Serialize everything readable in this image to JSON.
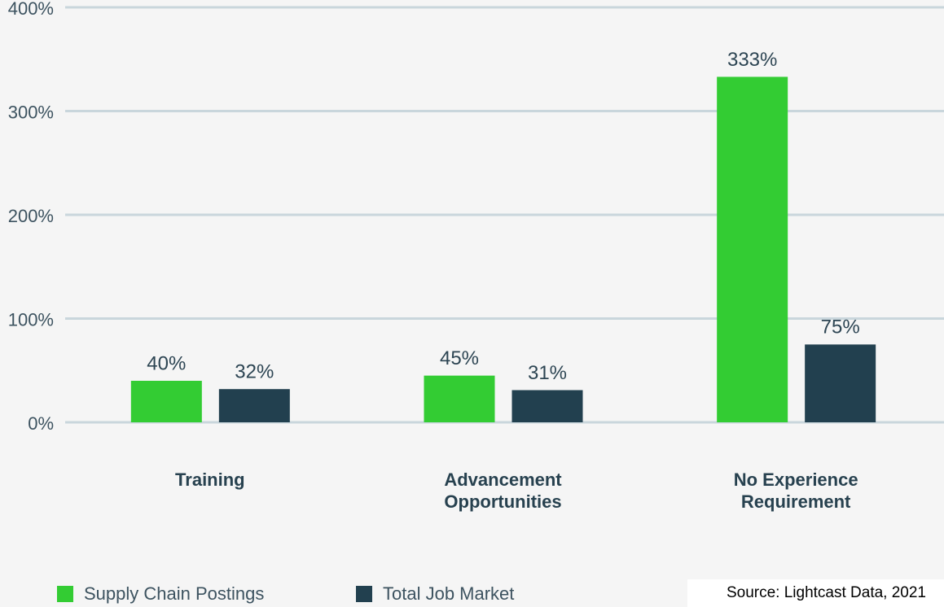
{
  "chart_data": {
    "type": "bar",
    "categories": [
      "Training",
      "Advancement Opportunities",
      "No Experience Requirement"
    ],
    "series": [
      {
        "name": "Supply Chain Postings",
        "color": "#33cc33",
        "values": [
          40,
          45,
          333
        ],
        "value_labels": [
          "40%",
          "45%",
          "333%"
        ]
      },
      {
        "name": "Total Job Market",
        "color": "#22404f",
        "values": [
          32,
          31,
          75
        ],
        "value_labels": [
          "32%",
          "31%",
          "75%"
        ]
      }
    ],
    "ylim": [
      0,
      400
    ],
    "yticks": [
      {
        "value": 0,
        "label": "0%"
      },
      {
        "value": 100,
        "label": "100%"
      },
      {
        "value": 200,
        "label": "200%"
      },
      {
        "value": 300,
        "label": "300%"
      },
      {
        "value": 400,
        "label": "400%"
      }
    ],
    "grid": true,
    "legend": "bottom-left",
    "source": "Source: Lightcast Data, 2021"
  }
}
